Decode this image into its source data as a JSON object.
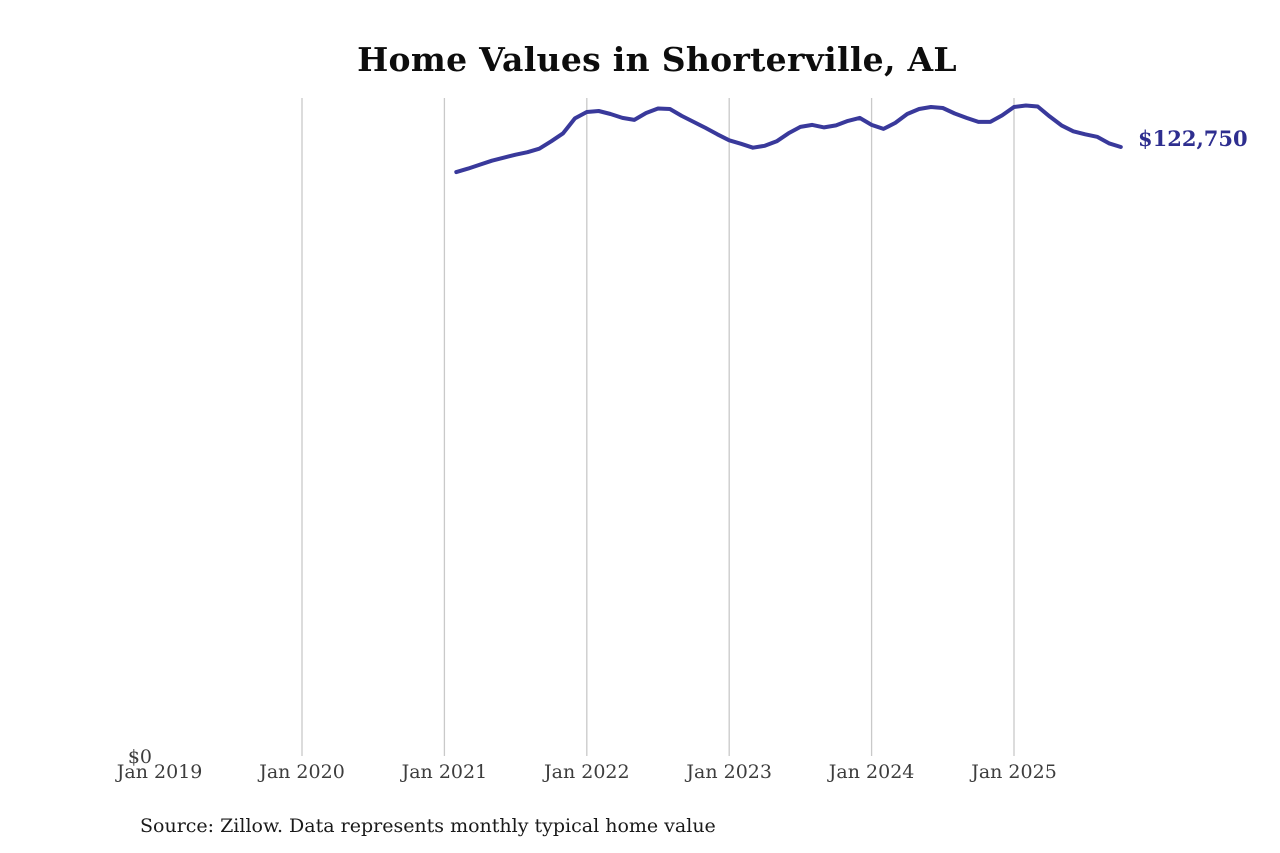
{
  "title": "Home Values in Shorterville, AL",
  "source_note": "Source: Zillow. Data represents monthly typical home value",
  "colors": {
    "line": "#39399b",
    "end_label": "#2e2e8f",
    "grid": "#c9c9c9",
    "tick_text": "#3d3d3d",
    "title_text": "#0d0d0d",
    "background": "#ffffff"
  },
  "chart_data": {
    "type": "line",
    "title": "Home Values in Shorterville, AL",
    "series_name": "Monthly typical home value",
    "unit": "USD",
    "legend": "none",
    "grid": "vertical-only",
    "xlabel": "",
    "ylabel": "",
    "ylim": [
      0,
      132500
    ],
    "x_tick_labels": [
      "Jan 2019",
      "Jan 2020",
      "Jan 2021",
      "Jan 2022",
      "Jan 2023",
      "Jan 2024",
      "Jan 2025"
    ],
    "x_tick_years": [
      2019,
      2020,
      2021,
      2022,
      2023,
      2024,
      2025
    ],
    "gridline_years": [
      2020,
      2021,
      2022,
      2023,
      2024,
      2025
    ],
    "y_tick_labels": [
      "$0"
    ],
    "end_label": "$122,750",
    "latest_value": 122750,
    "months": [
      "2021-02",
      "2021-03",
      "2021-04",
      "2021-05",
      "2021-06",
      "2021-07",
      "2021-08",
      "2021-09",
      "2021-10",
      "2021-11",
      "2021-12",
      "2022-01",
      "2022-02",
      "2022-03",
      "2022-04",
      "2022-05",
      "2022-06",
      "2022-07",
      "2022-08",
      "2022-09",
      "2022-10",
      "2022-11",
      "2022-12",
      "2023-01",
      "2023-02",
      "2023-03",
      "2023-04",
      "2023-05",
      "2023-06",
      "2023-07",
      "2023-08",
      "2023-09",
      "2023-10",
      "2023-11",
      "2023-12",
      "2024-01",
      "2024-02",
      "2024-03",
      "2024-04",
      "2024-05",
      "2024-06",
      "2024-07",
      "2024-08",
      "2024-09",
      "2024-10",
      "2024-11",
      "2024-12",
      "2025-01",
      "2025-02",
      "2025-03",
      "2025-04",
      "2025-05",
      "2025-06",
      "2025-07",
      "2025-08",
      "2025-09",
      "2025-10"
    ],
    "values": [
      117700,
      118400,
      119200,
      120000,
      120600,
      121200,
      121700,
      122400,
      123900,
      125500,
      128500,
      129800,
      130000,
      129400,
      128600,
      128200,
      129600,
      130500,
      130400,
      129000,
      127800,
      126600,
      125300,
      124100,
      123400,
      122600,
      123000,
      123900,
      125500,
      126800,
      127200,
      126700,
      127100,
      128000,
      128600,
      127200,
      126400,
      127600,
      129400,
      130400,
      130800,
      130600,
      129500,
      128600,
      127800,
      127800,
      129100,
      130800,
      131100,
      130900,
      128900,
      127100,
      125900,
      125300,
      124800,
      123500,
      122750
    ]
  }
}
